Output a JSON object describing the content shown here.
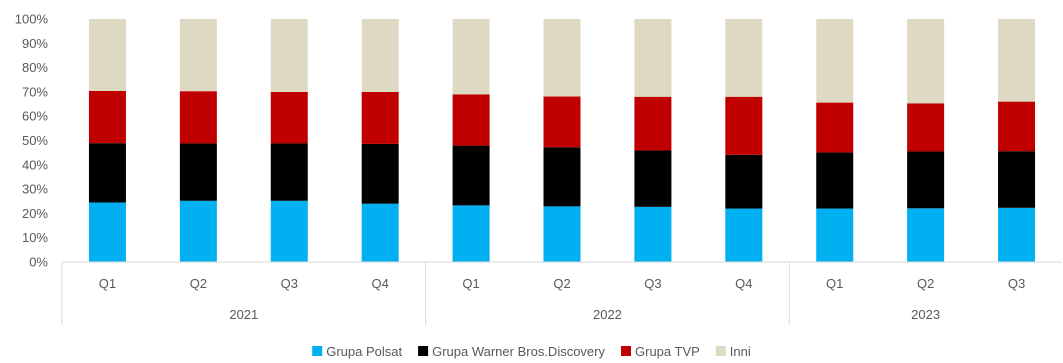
{
  "chart_data": {
    "type": "bar",
    "stacked": true,
    "percent": true,
    "groups": [
      {
        "label": "2021",
        "categories": [
          "Q1",
          "Q2",
          "Q3",
          "Q4"
        ]
      },
      {
        "label": "2022",
        "categories": [
          "Q1",
          "Q2",
          "Q3",
          "Q4"
        ]
      },
      {
        "label": "2023",
        "categories": [
          "Q1",
          "Q2",
          "Q3"
        ]
      }
    ],
    "y_ticks": [
      "0%",
      "10%",
      "20%",
      "30%",
      "40%",
      "50%",
      "60%",
      "70%",
      "80%",
      "90%",
      "100%"
    ],
    "ylim": [
      0,
      100
    ],
    "grid": false,
    "legend_position": "bottom",
    "series": [
      {
        "name": "Grupa Polsat",
        "color": "#00b0f0",
        "values": [
          24.5,
          25.2,
          25.2,
          24.0,
          23.3,
          22.9,
          22.7,
          22.0,
          22.0,
          22.1,
          22.3
        ]
      },
      {
        "name": "Grupa Warner Bros.Discovery",
        "color": "#000000",
        "values": [
          24.4,
          23.6,
          23.6,
          24.6,
          24.6,
          24.3,
          23.2,
          22.1,
          23.1,
          23.4,
          23.3
        ]
      },
      {
        "name": "Grupa TVP",
        "color": "#c00000",
        "values": [
          21.5,
          21.5,
          21.2,
          21.4,
          21.1,
          20.9,
          22.1,
          23.9,
          20.5,
          19.8,
          20.4
        ]
      },
      {
        "name": "Inni",
        "color": "#ddd9c3",
        "values": [
          29.6,
          29.7,
          30.0,
          30.0,
          31.0,
          31.9,
          32.0,
          32.0,
          34.4,
          34.7,
          34.0
        ]
      }
    ]
  }
}
